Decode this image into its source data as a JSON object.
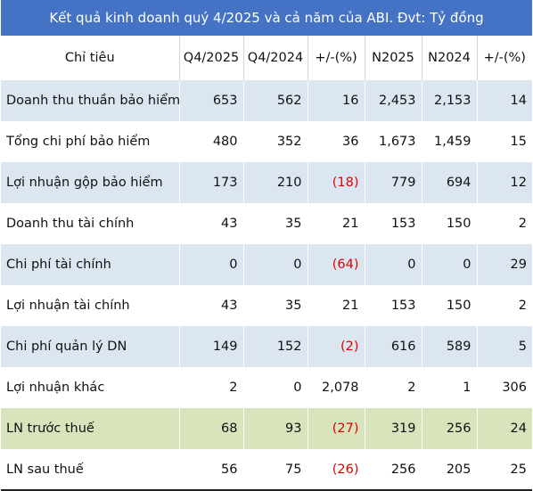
{
  "title": "Kết quả kinh doanh quý 4/2025 và cả năm của ABI. Đvt: Tỷ đồng",
  "columns": [
    "Chỉ tiêu",
    "Q4/2025",
    "Q4/2024",
    "+/-(%)",
    "N2025",
    "N2024",
    "+/-(%)"
  ],
  "rows": [
    {
      "label": "Doanh thu thuần bảo hiểm",
      "q4_2025": "653",
      "q4_2024": "562",
      "q_change": "16",
      "n2025": "2,453",
      "n2024": "2,153",
      "n_change": "14"
    },
    {
      "label": "Tổng chi phí bảo hiểm",
      "q4_2025": "480",
      "q4_2024": "352",
      "q_change": "36",
      "n2025": "1,673",
      "n2024": "1,459",
      "n_change": "15"
    },
    {
      "label": "Lợi nhuận gộp  bảo hiểm",
      "q4_2025": "173",
      "q4_2024": "210",
      "q_change": "(18)",
      "n2025": "779",
      "n2024": "694",
      "n_change": "12"
    },
    {
      "label": "Doanh thu tài chính",
      "q4_2025": "43",
      "q4_2024": "35",
      "q_change": "21",
      "n2025": "153",
      "n2024": "150",
      "n_change": "2"
    },
    {
      "label": "Chi phí tài chính",
      "q4_2025": "0",
      "q4_2024": "0",
      "q_change": "(64)",
      "n2025": "0",
      "n2024": "0",
      "n_change": "29"
    },
    {
      "label": "Lợi nhuận tài chính",
      "q4_2025": "43",
      "q4_2024": "35",
      "q_change": "21",
      "n2025": "153",
      "n2024": "150",
      "n_change": "2"
    },
    {
      "label": "Chi phí quản lý DN",
      "q4_2025": "149",
      "q4_2024": "152",
      "q_change": "(2)",
      "n2025": "616",
      "n2024": "589",
      "n_change": "5"
    },
    {
      "label": "Lợi nhuận khác",
      "q4_2025": "2",
      "q4_2024": "0",
      "q_change": "2,078",
      "n2025": "2",
      "n2024": "1",
      "n_change": "306"
    },
    {
      "label": "LN trước thuế",
      "q4_2025": "68",
      "q4_2024": "93",
      "q_change": "(27)",
      "n2025": "319",
      "n2024": "256",
      "n_change": "24"
    },
    {
      "label": "LN sau thuế",
      "q4_2025": "56",
      "q4_2024": "75",
      "q_change": "(26)",
      "n2025": "256",
      "n2024": "205",
      "n_change": "25"
    }
  ],
  "colors": {
    "header_bg": "#4472c4",
    "row_blue": "#dce6f1",
    "row_green": "#d8e4bc",
    "negative": "#e00000"
  }
}
